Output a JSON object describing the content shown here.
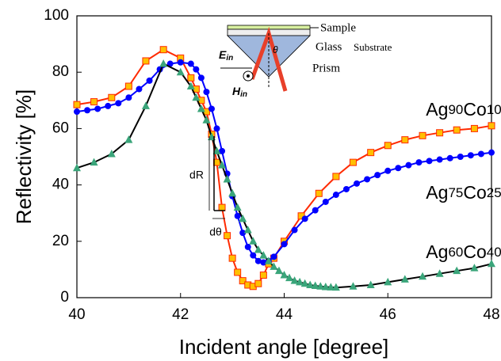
{
  "chart_data": {
    "type": "line",
    "x_label": "Incident angle [degree]",
    "y_label": "Reflectivity [%]",
    "xlim": [
      40,
      48
    ],
    "xticks": [
      40,
      42,
      44,
      46,
      48
    ],
    "ylim": [
      0,
      100
    ],
    "yticks": [
      0,
      20,
      40,
      60,
      80,
      100
    ],
    "grid": false,
    "series": [
      {
        "name": "Ag90Co10",
        "color": "#ff2a00",
        "marker": "square",
        "marker_color": "#ffc000",
        "x": [
          40,
          40.33,
          40.67,
          41,
          41.33,
          41.67,
          42,
          42.2,
          42.3,
          42.4,
          42.5,
          42.6,
          42.7,
          42.8,
          42.9,
          43.0,
          43.1,
          43.2,
          43.3,
          43.4,
          43.5,
          43.6,
          43.7,
          43.8,
          44,
          44.33,
          44.67,
          45,
          45.33,
          45.67,
          46,
          46.33,
          46.67,
          47,
          47.33,
          47.67,
          48
        ],
        "values": [
          68.5,
          69.5,
          71,
          75,
          84,
          88,
          85,
          78,
          74,
          70,
          66,
          58,
          48,
          32,
          22,
          14,
          9,
          6,
          4.5,
          4,
          5,
          8,
          12,
          14,
          20,
          29,
          37,
          43,
          48,
          51.5,
          54,
          56,
          57.5,
          58.5,
          59.5,
          60,
          61
        ]
      },
      {
        "name": "Ag75Co25",
        "color": "#0000ff",
        "marker": "circle",
        "marker_color": "#0000ff",
        "x": [
          40,
          40.2,
          40.4,
          40.6,
          40.8,
          41,
          41.2,
          41.4,
          41.6,
          41.8,
          42,
          42.2,
          42.3,
          42.4,
          42.5,
          42.6,
          42.7,
          42.8,
          42.9,
          43.0,
          43.1,
          43.2,
          43.3,
          43.4,
          43.5,
          43.6,
          43.7,
          43.8,
          44,
          44.2,
          44.4,
          44.6,
          44.8,
          45,
          45.2,
          45.4,
          45.6,
          45.8,
          46,
          46.2,
          46.4,
          46.6,
          46.8,
          47,
          47.2,
          47.4,
          47.6,
          47.8,
          48
        ],
        "values": [
          66,
          66.5,
          67,
          68,
          69,
          71,
          74,
          77,
          81,
          83,
          83.5,
          83,
          81,
          78,
          73,
          67,
          60,
          52,
          44,
          36,
          29,
          23,
          18,
          15,
          13,
          12.5,
          13,
          14.5,
          19,
          24,
          28,
          31,
          34,
          36.5,
          38.5,
          40.5,
          42,
          43.5,
          45,
          46,
          47,
          48,
          48.5,
          49,
          49.5,
          50,
          50.5,
          51,
          51.5
        ]
      },
      {
        "name": "Ag60Co40",
        "color": "#000000",
        "marker": "triangle",
        "marker_color": "#3aa57a",
        "x": [
          40,
          40.33,
          40.67,
          41,
          41.33,
          41.67,
          42,
          42.2,
          42.3,
          42.4,
          42.5,
          42.6,
          42.7,
          42.8,
          42.9,
          43.0,
          43.1,
          43.2,
          43.3,
          43.4,
          43.5,
          43.6,
          43.7,
          43.8,
          43.9,
          44,
          44.1,
          44.2,
          44.3,
          44.4,
          44.5,
          44.6,
          44.7,
          44.8,
          44.9,
          45,
          45.33,
          45.67,
          46,
          46.33,
          46.67,
          47,
          47.33,
          47.67,
          48
        ],
        "values": [
          46,
          48,
          51,
          56,
          68,
          83,
          80,
          75,
          71,
          67,
          63,
          57,
          52,
          47,
          42,
          37,
          32,
          28,
          24,
          20,
          17,
          15,
          13,
          11,
          9.5,
          8,
          7,
          6,
          5.5,
          5,
          4.5,
          4.2,
          4,
          3.8,
          3.7,
          3.6,
          4,
          4.5,
          5.5,
          6.5,
          7.5,
          8.5,
          9.5,
          10.5,
          12
        ]
      }
    ],
    "annotations": {
      "dR": "dR",
      "dtheta": "dθ"
    },
    "inset": {
      "sample": "Sample",
      "glass": "Glass",
      "substrate": "Substrate",
      "prism": "Prism",
      "e_field": "Ein",
      "h_field": "Hin",
      "angle": "θ"
    }
  }
}
